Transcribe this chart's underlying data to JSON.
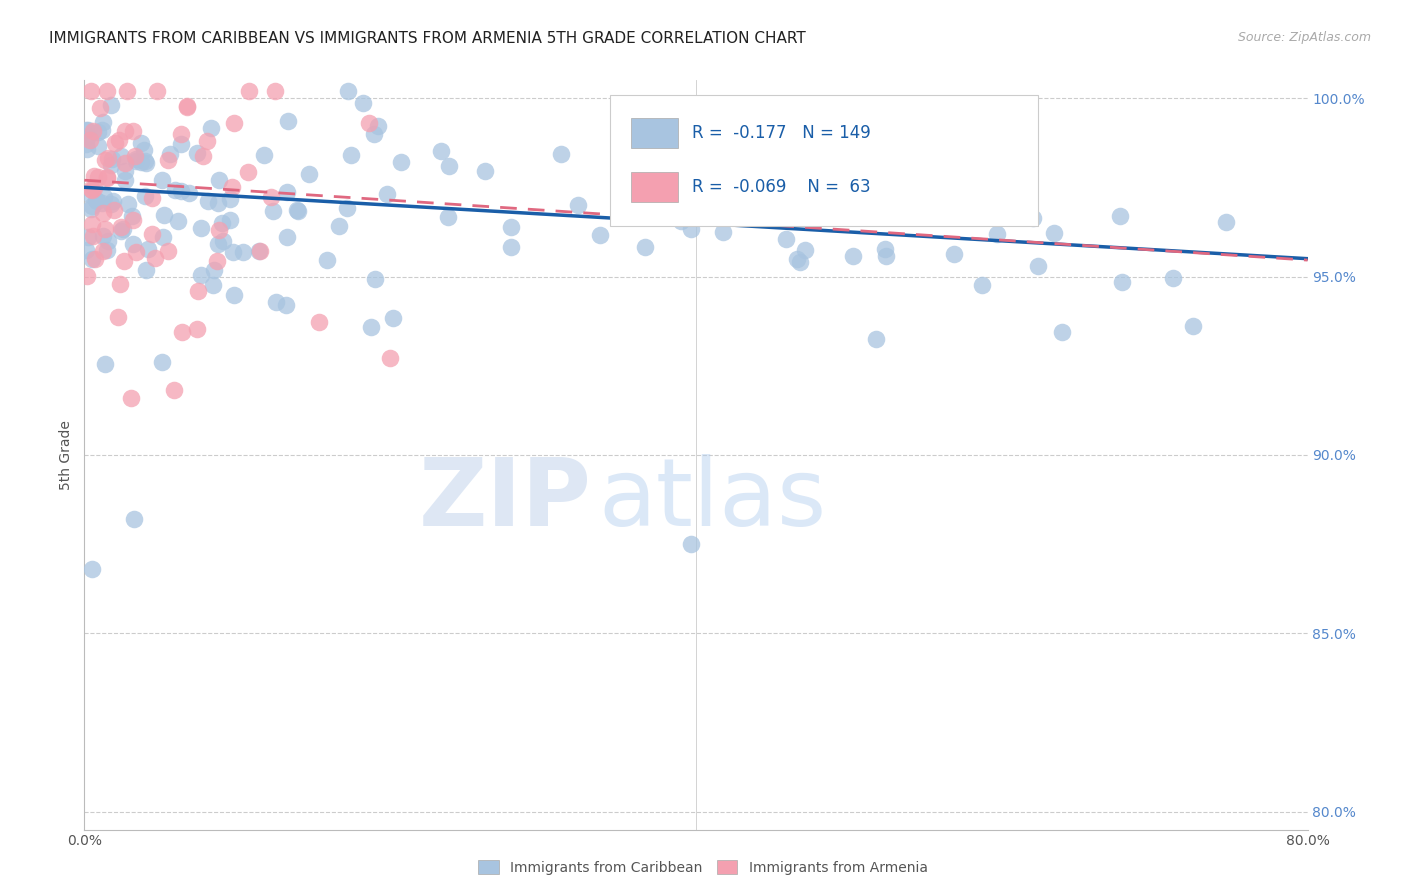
{
  "title": "IMMIGRANTS FROM CARIBBEAN VS IMMIGRANTS FROM ARMENIA 5TH GRADE CORRELATION CHART",
  "source": "Source: ZipAtlas.com",
  "ylabel": "5th Grade",
  "x_min": 0.0,
  "x_max": 0.8,
  "y_min": 0.795,
  "y_max": 1.005,
  "y_ticks": [
    0.8,
    0.85,
    0.9,
    0.95,
    1.0
  ],
  "y_tick_labels": [
    "80.0%",
    "85.0%",
    "90.0%",
    "95.0%",
    "100.0%"
  ],
  "x_ticks": [
    0.0,
    0.2,
    0.4,
    0.6,
    0.8
  ],
  "x_tick_labels": [
    "0.0%",
    "",
    "",
    "",
    "80.0%"
  ],
  "blue_R": -0.177,
  "blue_N": 149,
  "pink_R": -0.069,
  "pink_N": 63,
  "blue_color": "#a8c4e0",
  "pink_color": "#f4a0b0",
  "blue_line_color": "#1a5ea8",
  "pink_line_color": "#e06880",
  "legend_label_blue": "Immigrants from Caribbean",
  "legend_label_pink": "Immigrants from Armenia",
  "watermark_zip": "ZIP",
  "watermark_atlas": "atlas",
  "background_color": "#ffffff",
  "title_fontsize": 11,
  "right_axis_color": "#5588cc",
  "seed": 99,
  "blue_intercept": 0.975,
  "blue_slope": -0.025,
  "pink_intercept": 0.977,
  "pink_slope": -0.028
}
